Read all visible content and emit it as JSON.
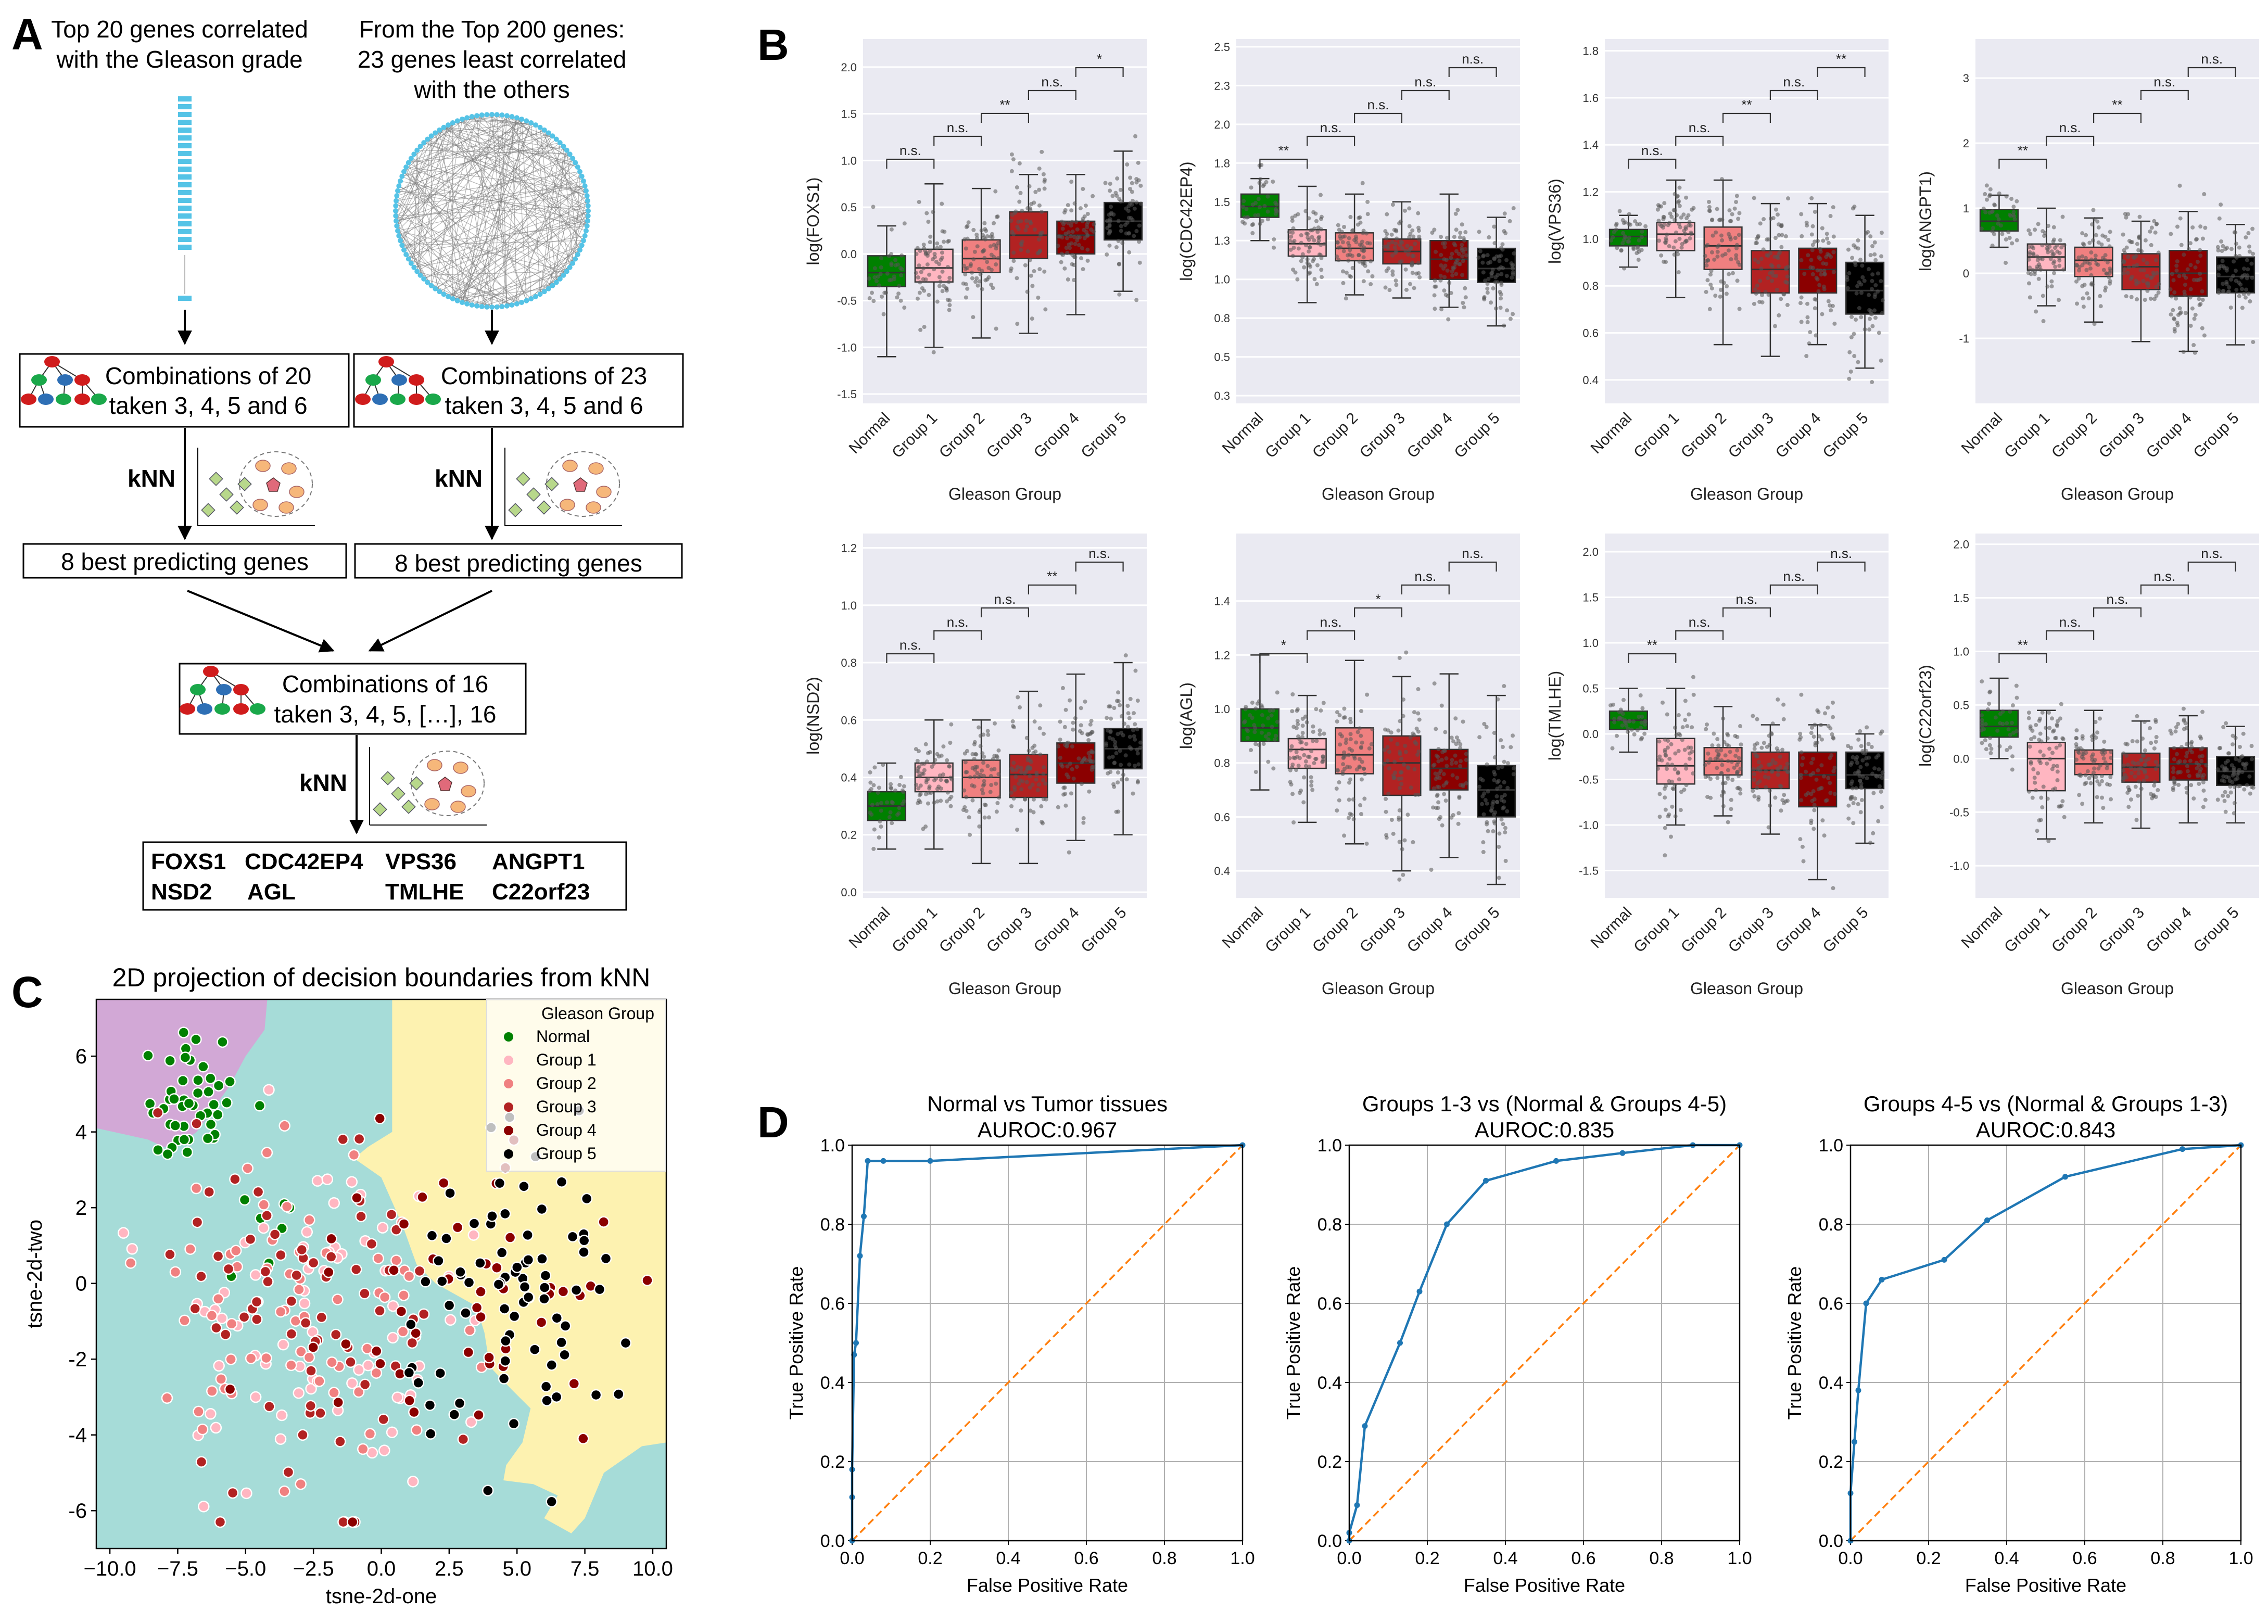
{
  "panel_labels": {
    "a": "A",
    "b": "B",
    "c": "C",
    "d": "D"
  },
  "flowchart": {
    "left_title": [
      "Top 20 genes correlated",
      "with the Gleason grade"
    ],
    "right_title": [
      "From the Top 200 genes:",
      "23 genes least correlated",
      "with the others"
    ],
    "box_left": [
      "Combinations of 20",
      "taken 3, 4, 5 and 6"
    ],
    "box_right": [
      "Combinations of 23",
      "taken 3, 4, 5 and 6"
    ],
    "knn": "kNN",
    "best_left": "8 best predicting genes",
    "best_right": "8 best predicting genes",
    "box_mid": [
      "Combinations of 16",
      "taken 3, 4, 5, […], 16"
    ],
    "genes": [
      "FOXS1",
      "CDC42EP4",
      "VPS36",
      "ANGPT1",
      "NSD2",
      "AGL",
      "TMLHE",
      "C22orf23"
    ]
  },
  "chart_data": [
    {
      "type": "box",
      "id": "FOXS1",
      "ylabel": "log(FOXS1)",
      "xlabel": "Gleason Group",
      "categories": [
        "Normal",
        "Group 1",
        "Group 2",
        "Group 3",
        "Group 4",
        "Group 5"
      ],
      "colors": [
        "#008000",
        "#ffb6c1",
        "#f08080",
        "#b22222",
        "#8b0000",
        "#000000"
      ],
      "ylim": [
        -1.6,
        2.3
      ],
      "yticks": [
        -1.5,
        -1.0,
        -0.5,
        0.0,
        0.5,
        1.0,
        1.5,
        2.0
      ],
      "boxes": [
        {
          "min": -1.1,
          "q1": -0.35,
          "median": -0.2,
          "q3": -0.02,
          "max": 0.3
        },
        {
          "min": -1.0,
          "q1": -0.3,
          "median": -0.15,
          "q3": 0.05,
          "max": 0.75
        },
        {
          "min": -0.9,
          "q1": -0.2,
          "median": -0.05,
          "q3": 0.15,
          "max": 0.7
        },
        {
          "min": -0.85,
          "q1": -0.05,
          "median": 0.2,
          "q3": 0.45,
          "max": 0.85
        },
        {
          "min": -0.65,
          "q1": 0.0,
          "median": 0.2,
          "q3": 0.35,
          "max": 0.85
        },
        {
          "min": -0.4,
          "q1": 0.15,
          "median": 0.35,
          "q3": 0.55,
          "max": 1.1
        }
      ],
      "sig": [
        "n.s.",
        "n.s.",
        "**",
        "n.s.",
        "*"
      ]
    },
    {
      "type": "box",
      "id": "CDC42EP4",
      "ylabel": "log(CDC42EP4)",
      "xlabel": "Gleason Group",
      "categories": [
        "Normal",
        "Group 1",
        "Group 2",
        "Group 3",
        "Group 4",
        "Group 5"
      ],
      "colors": [
        "#008000",
        "#ffb6c1",
        "#f08080",
        "#b22222",
        "#8b0000",
        "#000000"
      ],
      "ylim": [
        0.2,
        2.55
      ],
      "yticks": [
        0.25,
        0.5,
        0.75,
        1.0,
        1.25,
        1.5,
        1.75,
        2.0,
        2.25,
        2.5
      ],
      "boxes": [
        {
          "min": 1.25,
          "q1": 1.4,
          "median": 1.47,
          "q3": 1.55,
          "max": 1.65
        },
        {
          "min": 0.85,
          "q1": 1.15,
          "median": 1.23,
          "q3": 1.32,
          "max": 1.6
        },
        {
          "min": 0.9,
          "q1": 1.12,
          "median": 1.2,
          "q3": 1.3,
          "max": 1.55
        },
        {
          "min": 0.88,
          "q1": 1.1,
          "median": 1.18,
          "q3": 1.26,
          "max": 1.5
        },
        {
          "min": 0.82,
          "q1": 1.0,
          "median": 1.13,
          "q3": 1.25,
          "max": 1.55
        },
        {
          "min": 0.7,
          "q1": 0.98,
          "median": 1.07,
          "q3": 1.2,
          "max": 1.4
        }
      ],
      "sig": [
        "**",
        "n.s.",
        "n.s.",
        "n.s.",
        "n.s."
      ]
    },
    {
      "type": "box",
      "id": "VPS36",
      "ylabel": "log(VPS36)",
      "xlabel": "Gleason Group",
      "categories": [
        "Normal",
        "Group 1",
        "Group 2",
        "Group 3",
        "Group 4",
        "Group 5"
      ],
      "colors": [
        "#008000",
        "#ffb6c1",
        "#f08080",
        "#b22222",
        "#8b0000",
        "#000000"
      ],
      "ylim": [
        0.3,
        1.85
      ],
      "yticks": [
        0.4,
        0.6,
        0.8,
        1.0,
        1.2,
        1.4,
        1.6,
        1.8
      ],
      "boxes": [
        {
          "min": 0.88,
          "q1": 0.97,
          "median": 1.01,
          "q3": 1.04,
          "max": 1.1
        },
        {
          "min": 0.75,
          "q1": 0.95,
          "median": 1.02,
          "q3": 1.07,
          "max": 1.25
        },
        {
          "min": 0.55,
          "q1": 0.87,
          "median": 0.97,
          "q3": 1.05,
          "max": 1.25
        },
        {
          "min": 0.5,
          "q1": 0.77,
          "median": 0.87,
          "q3": 0.95,
          "max": 1.15
        },
        {
          "min": 0.55,
          "q1": 0.77,
          "median": 0.87,
          "q3": 0.96,
          "max": 1.15
        },
        {
          "min": 0.45,
          "q1": 0.68,
          "median": 0.78,
          "q3": 0.9,
          "max": 1.1
        }
      ],
      "sig": [
        "n.s.",
        "n.s.",
        "**",
        "n.s.",
        "**"
      ]
    },
    {
      "type": "box",
      "id": "ANGPT1",
      "ylabel": "log(ANGPT1)",
      "xlabel": "Gleason Group",
      "categories": [
        "Normal",
        "Group 1",
        "Group 2",
        "Group 3",
        "Group 4",
        "Group 5"
      ],
      "colors": [
        "#008000",
        "#ffb6c1",
        "#f08080",
        "#b22222",
        "#8b0000",
        "#000000"
      ],
      "ylim": [
        -2.0,
        3.6
      ],
      "yticks": [
        -1,
        0,
        1,
        2,
        3
      ],
      "boxes": [
        {
          "min": 0.4,
          "q1": 0.65,
          "median": 0.8,
          "q3": 0.98,
          "max": 1.2
        },
        {
          "min": -0.5,
          "q1": 0.05,
          "median": 0.25,
          "q3": 0.45,
          "max": 1.0
        },
        {
          "min": -0.75,
          "q1": -0.05,
          "median": 0.2,
          "q3": 0.4,
          "max": 0.85
        },
        {
          "min": -1.05,
          "q1": -0.25,
          "median": 0.1,
          "q3": 0.3,
          "max": 0.8
        },
        {
          "min": -1.2,
          "q1": -0.35,
          "median": 0.0,
          "q3": 0.35,
          "max": 0.95
        },
        {
          "min": -1.1,
          "q1": -0.3,
          "median": -0.05,
          "q3": 0.25,
          "max": 0.75
        }
      ],
      "sig": [
        "**",
        "n.s.",
        "**",
        "n.s.",
        "n.s."
      ]
    },
    {
      "type": "box",
      "id": "NSD2",
      "ylabel": "log(NSD2)",
      "xlabel": "Gleason Group",
      "categories": [
        "Normal",
        "Group 1",
        "Group 2",
        "Group 3",
        "Group 4",
        "Group 5"
      ],
      "colors": [
        "#008000",
        "#ffb6c1",
        "#f08080",
        "#b22222",
        "#8b0000",
        "#000000"
      ],
      "ylim": [
        -0.02,
        1.25
      ],
      "yticks": [
        0.0,
        0.2,
        0.4,
        0.6,
        0.8,
        1.0,
        1.2
      ],
      "boxes": [
        {
          "min": 0.15,
          "q1": 0.25,
          "median": 0.3,
          "q3": 0.35,
          "max": 0.45
        },
        {
          "min": 0.15,
          "q1": 0.35,
          "median": 0.4,
          "q3": 0.45,
          "max": 0.6
        },
        {
          "min": 0.1,
          "q1": 0.33,
          "median": 0.4,
          "q3": 0.46,
          "max": 0.6
        },
        {
          "min": 0.1,
          "q1": 0.33,
          "median": 0.41,
          "q3": 0.48,
          "max": 0.7
        },
        {
          "min": 0.18,
          "q1": 0.38,
          "median": 0.45,
          "q3": 0.52,
          "max": 0.76
        },
        {
          "min": 0.2,
          "q1": 0.43,
          "median": 0.5,
          "q3": 0.57,
          "max": 0.8
        }
      ],
      "sig": [
        "n.s.",
        "n.s.",
        "n.s.",
        "**",
        "n.s."
      ]
    },
    {
      "type": "box",
      "id": "AGL",
      "ylabel": "log(AGL)",
      "xlabel": "Gleason Group",
      "categories": [
        "Normal",
        "Group 1",
        "Group 2",
        "Group 3",
        "Group 4",
        "Group 5"
      ],
      "colors": [
        "#008000",
        "#ffb6c1",
        "#f08080",
        "#b22222",
        "#8b0000",
        "#000000"
      ],
      "ylim": [
        0.3,
        1.65
      ],
      "yticks": [
        0.4,
        0.6,
        0.8,
        1.0,
        1.2,
        1.4
      ],
      "boxes": [
        {
          "min": 0.7,
          "q1": 0.88,
          "median": 0.93,
          "q3": 1.0,
          "max": 1.2
        },
        {
          "min": 0.58,
          "q1": 0.78,
          "median": 0.85,
          "q3": 0.89,
          "max": 1.05
        },
        {
          "min": 0.5,
          "q1": 0.76,
          "median": 0.83,
          "q3": 0.93,
          "max": 1.18
        },
        {
          "min": 0.4,
          "q1": 0.68,
          "median": 0.8,
          "q3": 0.9,
          "max": 1.12
        },
        {
          "min": 0.45,
          "q1": 0.7,
          "median": 0.78,
          "q3": 0.85,
          "max": 1.13
        },
        {
          "min": 0.35,
          "q1": 0.6,
          "median": 0.7,
          "q3": 0.79,
          "max": 1.05
        }
      ],
      "sig": [
        "*",
        "n.s.",
        "*",
        "n.s.",
        "n.s."
      ]
    },
    {
      "type": "box",
      "id": "TMLHE",
      "ylabel": "log(TMLHE)",
      "xlabel": "Gleason Group",
      "categories": [
        "Normal",
        "Group 1",
        "Group 2",
        "Group 3",
        "Group 4",
        "Group 5"
      ],
      "colors": [
        "#008000",
        "#ffb6c1",
        "#f08080",
        "#b22222",
        "#8b0000",
        "#000000"
      ],
      "ylim": [
        -1.8,
        2.2
      ],
      "yticks": [
        -1.5,
        -1.0,
        -0.5,
        0.0,
        0.5,
        1.0,
        1.5,
        2.0
      ],
      "boxes": [
        {
          "min": -0.2,
          "q1": 0.05,
          "median": 0.15,
          "q3": 0.25,
          "max": 0.5
        },
        {
          "min": -1.0,
          "q1": -0.55,
          "median": -0.35,
          "q3": -0.05,
          "max": 0.5
        },
        {
          "min": -0.9,
          "q1": -0.45,
          "median": -0.3,
          "q3": -0.15,
          "max": 0.3
        },
        {
          "min": -1.1,
          "q1": -0.6,
          "median": -0.4,
          "q3": -0.2,
          "max": 0.1
        },
        {
          "min": -1.6,
          "q1": -0.8,
          "median": -0.45,
          "q3": -0.2,
          "max": 0.1
        },
        {
          "min": -1.2,
          "q1": -0.6,
          "median": -0.45,
          "q3": -0.2,
          "max": 0.0
        }
      ],
      "sig": [
        "**",
        "n.s.",
        "n.s.",
        "n.s.",
        "n.s."
      ]
    },
    {
      "type": "box",
      "id": "C22orf23",
      "ylabel": "log(C22orf23)",
      "xlabel": "Gleason Group",
      "categories": [
        "Normal",
        "Group 1",
        "Group 2",
        "Group 3",
        "Group 4",
        "Group 5"
      ],
      "colors": [
        "#008000",
        "#ffb6c1",
        "#f08080",
        "#b22222",
        "#8b0000",
        "#000000"
      ],
      "ylim": [
        -1.3,
        2.1
      ],
      "yticks": [
        -1.0,
        -0.5,
        0.0,
        0.5,
        1.0,
        1.5,
        2.0
      ],
      "boxes": [
        {
          "min": 0.0,
          "q1": 0.2,
          "median": 0.3,
          "q3": 0.45,
          "max": 0.75
        },
        {
          "min": -0.75,
          "q1": -0.3,
          "median": 0.0,
          "q3": 0.15,
          "max": 0.45
        },
        {
          "min": -0.6,
          "q1": -0.15,
          "median": -0.05,
          "q3": 0.08,
          "max": 0.45
        },
        {
          "min": -0.65,
          "q1": -0.22,
          "median": -0.08,
          "q3": 0.05,
          "max": 0.35
        },
        {
          "min": -0.6,
          "q1": -0.2,
          "median": -0.05,
          "q3": 0.1,
          "max": 0.4
        },
        {
          "min": -0.6,
          "q1": -0.25,
          "median": -0.12,
          "q3": 0.02,
          "max": 0.3
        }
      ],
      "sig": [
        "**",
        "n.s.",
        "n.s.",
        "n.s.",
        "n.s."
      ]
    },
    {
      "type": "scatter",
      "id": "tsne",
      "title": "2D projection of decision boundaries from kNN",
      "xlabel": "tsne-2d-one",
      "ylabel": "tsne-2d-two",
      "xlim": [
        -10.5,
        10.5
      ],
      "ylim": [
        -7.0,
        7.5
      ],
      "xticks": [
        -10.0,
        -7.5,
        -5.0,
        -2.5,
        0.0,
        2.5,
        5.0,
        7.5,
        10.0
      ],
      "yticks": [
        -6,
        -4,
        -2,
        0,
        2,
        4,
        6
      ],
      "region_colors": {
        "normal": "#d2a8d6",
        "tumor_low": "#a6dcd8",
        "tumor_high": "#fdf2b0"
      },
      "legend_title": "Gleason Group",
      "legend": [
        {
          "label": "Normal",
          "color": "#008000"
        },
        {
          "label": "Group 1",
          "color": "#ffb6c1"
        },
        {
          "label": "Group 2",
          "color": "#f08080"
        },
        {
          "label": "Group 3",
          "color": "#b22222"
        },
        {
          "label": "Group 4",
          "color": "#8b0000"
        },
        {
          "label": "Group 5",
          "color": "#000000"
        }
      ]
    },
    {
      "type": "line",
      "id": "roc1",
      "title": [
        "Normal vs Tumor tissues",
        "AUROC:0.967"
      ],
      "xlabel": "False Positive Rate",
      "ylabel": "True Positive Rate",
      "xlim": [
        0,
        1
      ],
      "ylim": [
        0,
        1
      ],
      "ticks": [
        0.0,
        0.2,
        0.4,
        0.6,
        0.8,
        1.0
      ],
      "roc": {
        "x": [
          0,
          0.0,
          0.0,
          0.005,
          0.01,
          0.02,
          0.03,
          0.04,
          0.08,
          0.2,
          1.0
        ],
        "y": [
          0,
          0.11,
          0.18,
          0.47,
          0.5,
          0.72,
          0.82,
          0.96,
          0.96,
          0.96,
          1.0
        ]
      },
      "color": "#1f77b4",
      "diag_color": "#ff7f0e"
    },
    {
      "type": "line",
      "id": "roc2",
      "title": [
        "Groups 1-3 vs (Normal & Groups 4-5)",
        "AUROC:0.835"
      ],
      "xlabel": "False Positive Rate",
      "ylabel": "True Positive Rate",
      "xlim": [
        0,
        1
      ],
      "ylim": [
        0,
        1
      ],
      "ticks": [
        0.0,
        0.2,
        0.4,
        0.6,
        0.8,
        1.0
      ],
      "roc": {
        "x": [
          0,
          0.0,
          0.02,
          0.04,
          0.13,
          0.18,
          0.25,
          0.35,
          0.53,
          0.7,
          0.88,
          1.0
        ],
        "y": [
          0,
          0.02,
          0.09,
          0.29,
          0.5,
          0.63,
          0.8,
          0.91,
          0.96,
          0.98,
          1.0,
          1.0
        ]
      },
      "color": "#1f77b4",
      "diag_color": "#ff7f0e"
    },
    {
      "type": "line",
      "id": "roc3",
      "title": [
        "Groups 4-5 vs (Normal & Groups 1-3)",
        "AUROC:0.843"
      ],
      "xlabel": "False Positive Rate",
      "ylabel": "True Positive Rate",
      "xlim": [
        0,
        1
      ],
      "ylim": [
        0,
        1
      ],
      "ticks": [
        0.0,
        0.2,
        0.4,
        0.6,
        0.8,
        1.0
      ],
      "roc": {
        "x": [
          0,
          0.0,
          0.01,
          0.02,
          0.04,
          0.08,
          0.24,
          0.35,
          0.55,
          0.85,
          1.0
        ],
        "y": [
          0,
          0.12,
          0.25,
          0.38,
          0.6,
          0.66,
          0.71,
          0.81,
          0.92,
          0.99,
          1.0
        ]
      },
      "color": "#1f77b4",
      "diag_color": "#ff7f0e"
    }
  ]
}
